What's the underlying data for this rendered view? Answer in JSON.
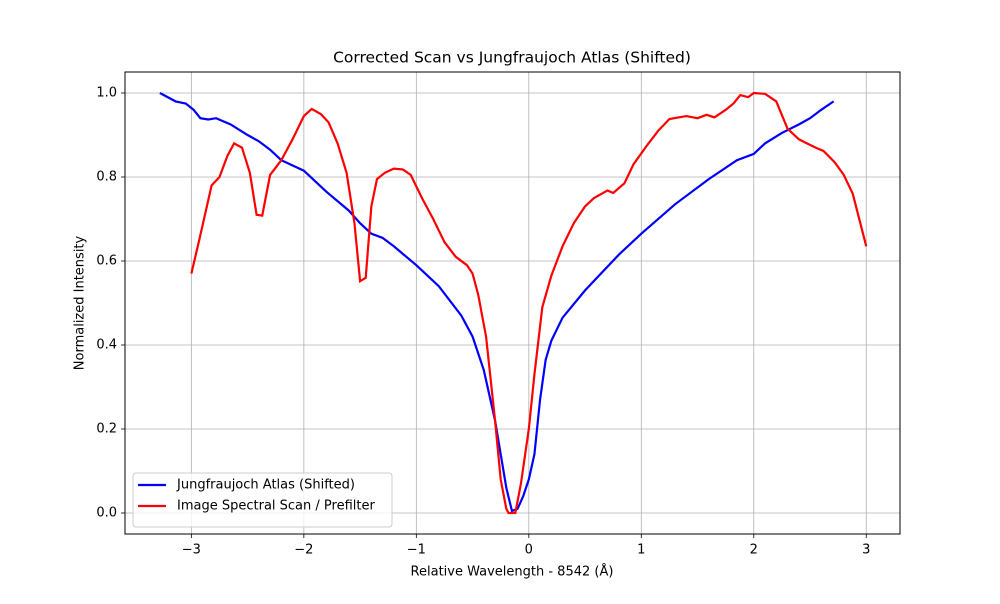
{
  "chart_data": {
    "type": "line",
    "title": "Corrected Scan vs Jungfraujoch Atlas (Shifted)",
    "xlabel": "Relative Wavelength - 8542 (Å)",
    "ylabel": "Normalized Intensity",
    "xlim": [
      -3.59,
      3.3
    ],
    "ylim": [
      -0.05,
      1.05
    ],
    "xticks": [
      {
        "value": -3,
        "label": "−3"
      },
      {
        "value": -2,
        "label": "−2"
      },
      {
        "value": -1,
        "label": "−1"
      },
      0,
      1,
      2,
      3
    ],
    "yticks": [
      {
        "value": 0,
        "label": "0.0"
      },
      0.2,
      0.4,
      0.6,
      0.8,
      {
        "value": 1,
        "label": "1.0"
      }
    ],
    "grid": true,
    "legend": "lower left",
    "series": [
      {
        "name": "Jungfraujoch Atlas (Shifted)",
        "color": "#0000ff",
        "x": [
          -3.28,
          -3.14,
          -3.05,
          -2.98,
          -2.92,
          -2.85,
          -2.78,
          -2.65,
          -2.5,
          -2.4,
          -2.3,
          -2.2,
          -2.0,
          -1.8,
          -1.6,
          -1.5,
          -1.4,
          -1.3,
          -1.2,
          -1.0,
          -0.8,
          -0.6,
          -0.5,
          -0.4,
          -0.3,
          -0.25,
          -0.2,
          -0.15,
          -0.1,
          -0.05,
          0,
          0.05,
          0.1,
          0.15,
          0.2,
          0.3,
          0.5,
          0.8,
          1.0,
          1.3,
          1.6,
          1.85,
          2.0,
          2.1,
          2.25,
          2.4,
          2.5,
          2.6,
          2.71
        ],
        "values": [
          1.0,
          0.98,
          0.975,
          0.96,
          0.94,
          0.937,
          0.94,
          0.925,
          0.9,
          0.885,
          0.865,
          0.84,
          0.815,
          0.765,
          0.72,
          0.69,
          0.665,
          0.655,
          0.635,
          0.59,
          0.54,
          0.47,
          0.42,
          0.34,
          0.22,
          0.14,
          0.06,
          0.005,
          0.01,
          0.04,
          0.08,
          0.14,
          0.27,
          0.365,
          0.41,
          0.465,
          0.53,
          0.615,
          0.665,
          0.735,
          0.795,
          0.84,
          0.855,
          0.88,
          0.905,
          0.925,
          0.94,
          0.96,
          0.98
        ]
      },
      {
        "name": "Image Spectral Scan / Prefilter",
        "color": "#ff0000",
        "x": [
          -3.0,
          -2.93,
          -2.82,
          -2.75,
          -2.68,
          -2.62,
          -2.55,
          -2.48,
          -2.42,
          -2.37,
          -2.3,
          -2.2,
          -2.1,
          -2.0,
          -1.93,
          -1.85,
          -1.78,
          -1.7,
          -1.62,
          -1.55,
          -1.5,
          -1.45,
          -1.4,
          -1.35,
          -1.28,
          -1.2,
          -1.12,
          -1.05,
          -0.95,
          -0.85,
          -0.75,
          -0.65,
          -0.55,
          -0.5,
          -0.45,
          -0.38,
          -0.3,
          -0.25,
          -0.2,
          -0.18,
          -0.12,
          -0.07,
          0,
          0.05,
          0.12,
          0.2,
          0.3,
          0.4,
          0.5,
          0.58,
          0.7,
          0.75,
          0.85,
          0.93,
          1.05,
          1.15,
          1.25,
          1.4,
          1.5,
          1.58,
          1.65,
          1.75,
          1.82,
          1.88,
          1.95,
          2.0,
          2.1,
          2.2,
          2.3,
          2.4,
          2.45,
          2.55,
          2.62,
          2.72,
          2.8,
          2.88,
          3.0
        ],
        "values": [
          0.57,
          0.65,
          0.78,
          0.8,
          0.85,
          0.88,
          0.87,
          0.81,
          0.71,
          0.708,
          0.805,
          0.84,
          0.89,
          0.945,
          0.962,
          0.95,
          0.93,
          0.88,
          0.81,
          0.69,
          0.552,
          0.56,
          0.73,
          0.795,
          0.81,
          0.82,
          0.818,
          0.805,
          0.75,
          0.7,
          0.645,
          0.61,
          0.59,
          0.57,
          0.52,
          0.42,
          0.22,
          0.08,
          0.01,
          0.0,
          0.0,
          0.07,
          0.2,
          0.33,
          0.49,
          0.565,
          0.635,
          0.69,
          0.73,
          0.75,
          0.768,
          0.762,
          0.785,
          0.83,
          0.875,
          0.91,
          0.938,
          0.945,
          0.94,
          0.948,
          0.942,
          0.96,
          0.975,
          0.995,
          0.99,
          1.0,
          0.998,
          0.98,
          0.915,
          0.89,
          0.883,
          0.87,
          0.862,
          0.835,
          0.805,
          0.76,
          0.635
        ]
      }
    ]
  }
}
